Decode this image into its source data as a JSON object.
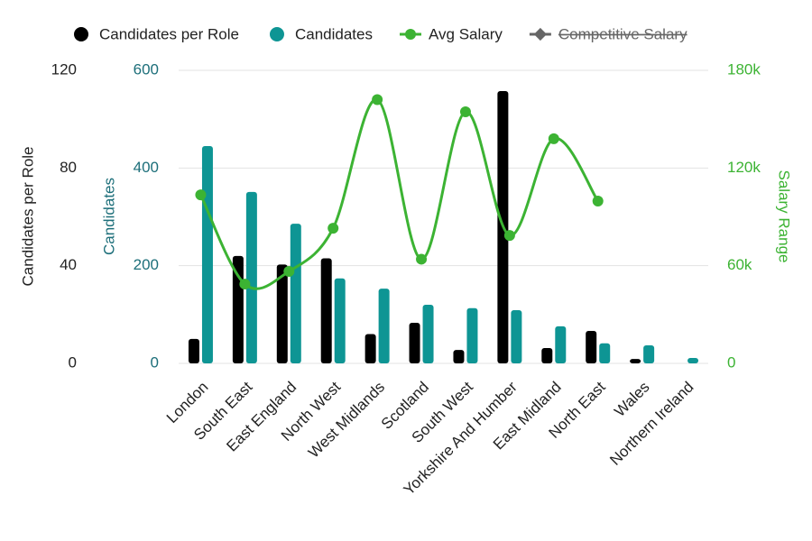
{
  "chart_data": {
    "type": "bar_line",
    "categories": [
      "London",
      "South East",
      "East England",
      "North West",
      "West Midlands",
      "Scotland",
      "South West",
      "Yorkshire And Humber",
      "East Midland",
      "North East",
      "Wales",
      "Northern Ireland"
    ],
    "series": [
      {
        "name": "Candidates per Role",
        "color": "#000000",
        "type": "bar",
        "axis": "y",
        "values": [
          10,
          44,
          40.5,
          43,
          12,
          16.6,
          5.5,
          111.5,
          6.3,
          13.3,
          1.8,
          0
        ]
      },
      {
        "name": "Candidates",
        "color": "#0e9594",
        "type": "bar",
        "axis": "y2",
        "values": [
          445,
          351,
          286,
          174,
          153,
          120,
          113,
          109,
          76,
          41,
          37,
          11
        ]
      },
      {
        "name": "Avg Salary",
        "color": "#3cb333",
        "type": "line",
        "axis": "y3",
        "values": [
          103500,
          48700,
          56500,
          83000,
          162000,
          64000,
          154500,
          78600,
          138000,
          99700,
          null,
          null
        ]
      },
      {
        "name": "Competitive Salary",
        "color": "#666666",
        "type": "line",
        "axis": "y3",
        "hidden": true
      }
    ],
    "ylabel": "Candidates per Role",
    "ylim": [
      0,
      120
    ],
    "yticks": [
      0,
      40,
      80,
      120
    ],
    "y2label": "Candidates",
    "y2lim": [
      0,
      600
    ],
    "y2ticks": [
      0,
      200,
      400,
      600
    ],
    "y3label": "Salary Range",
    "y3lim": [
      0,
      180000
    ],
    "y3ticks": [
      0,
      {
        "value": 60000,
        "label": "60k"
      },
      {
        "value": 120000,
        "label": "120k"
      },
      {
        "value": 180000,
        "label": "180k"
      }
    ],
    "grid": true,
    "legend": "top"
  }
}
